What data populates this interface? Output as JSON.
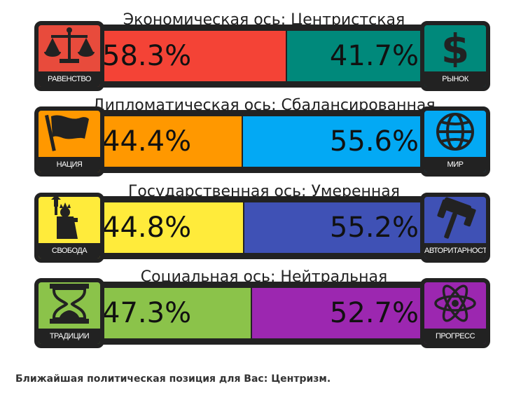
{
  "chart_data": [
    {
      "type": "bar",
      "title": "Экономическая ось: Центристская",
      "left": {
        "label": "РАВЕНСТВО",
        "icon": "scales-icon",
        "value": 58.3,
        "value_text": "58.3%",
        "color": "#f44336",
        "icon_bg": "#e84b3c"
      },
      "right": {
        "label": "РЫНОК",
        "icon": "dollar-icon",
        "value": 41.7,
        "value_text": "41.7%",
        "color": "#00897b",
        "icon_bg": "#00897b"
      }
    },
    {
      "type": "bar",
      "title": "Дипломатическая ось: Сбалансированная",
      "left": {
        "label": "НАЦИЯ",
        "icon": "flag-icon",
        "value": 44.4,
        "value_text": "44.4%",
        "color": "#ff9800",
        "icon_bg": "#ff9800"
      },
      "right": {
        "label": "МИР",
        "icon": "globe-icon",
        "value": 55.6,
        "value_text": "55.6%",
        "color": "#03a9f4",
        "icon_bg": "#03a9f4"
      }
    },
    {
      "type": "bar",
      "title": "Государственная ось: Умеренная",
      "left": {
        "label": "СВОБОДА",
        "icon": "statue-of-liberty-icon",
        "value": 44.8,
        "value_text": "44.8%",
        "color": "#ffeb3b",
        "icon_bg": "#ffeb3b"
      },
      "right": {
        "label": "АВТОРИТАРНОСТЬ",
        "icon": "gavel-icon",
        "value": 55.2,
        "value_text": "55.2%",
        "color": "#3f51b5",
        "icon_bg": "#3f51b5"
      }
    },
    {
      "type": "bar",
      "title": "Социальная ось: Нейтральная",
      "left": {
        "label": "ТРАДИЦИИ",
        "icon": "hourglass-icon",
        "value": 47.3,
        "value_text": "47.3%",
        "color": "#8bc34a",
        "icon_bg": "#8bc34a"
      },
      "right": {
        "label": "ПРОГРЕСС",
        "icon": "atom-icon",
        "value": 52.7,
        "value_text": "52.7%",
        "color": "#9c27b0",
        "icon_bg": "#9c27b0"
      }
    }
  ],
  "closest_match": "Ближайшая политическая позиция для Вас: Центризм."
}
